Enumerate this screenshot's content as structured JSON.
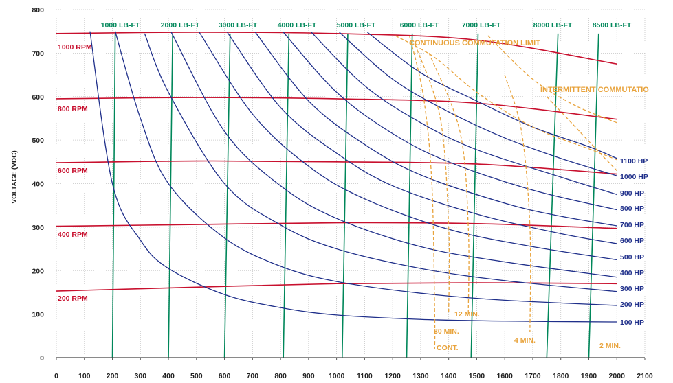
{
  "chart_data": {
    "type": "line",
    "title": "",
    "xlabel": "",
    "ylabel": "VOLTAGE (VDC)",
    "xlim": [
      0,
      2100
    ],
    "ylim": [
      0,
      800
    ],
    "grid": true,
    "x_ticks": [
      "0",
      "100",
      "200",
      "300",
      "400",
      "500",
      "600",
      "700",
      "800",
      "900",
      "1000",
      "1100",
      "1200",
      "1300",
      "1400",
      "1500",
      "1600",
      "1700",
      "1800",
      "1900",
      "2000",
      "2100"
    ],
    "y_ticks": [
      "0",
      "100",
      "200",
      "300",
      "400",
      "500",
      "600",
      "700",
      "800"
    ],
    "colors": {
      "rpm": "#c8102e",
      "torque": "#00875a",
      "hp": "#1f2f8a",
      "limit": "#e8a33c",
      "grid": "#c4c4c4"
    },
    "rpm_series": [
      {
        "name": "1000 RPM",
        "points": [
          [
            0,
            745
          ],
          [
            500,
            748
          ],
          [
            1000,
            745
          ],
          [
            1500,
            730
          ],
          [
            2000,
            675
          ]
        ]
      },
      {
        "name": "800 RPM",
        "points": [
          [
            0,
            595
          ],
          [
            500,
            598
          ],
          [
            1000,
            595
          ],
          [
            1500,
            585
          ],
          [
            2000,
            548
          ]
        ]
      },
      {
        "name": "600 RPM",
        "points": [
          [
            0,
            448
          ],
          [
            500,
            452
          ],
          [
            1000,
            450
          ],
          [
            1500,
            445
          ],
          [
            2000,
            422
          ]
        ]
      },
      {
        "name": "400 RPM",
        "points": [
          [
            0,
            302
          ],
          [
            500,
            306
          ],
          [
            1000,
            310
          ],
          [
            1500,
            308
          ],
          [
            2000,
            297
          ]
        ]
      },
      {
        "name": "200 RPM",
        "points": [
          [
            0,
            153
          ],
          [
            500,
            162
          ],
          [
            1000,
            170
          ],
          [
            1500,
            172
          ],
          [
            2000,
            170
          ]
        ]
      }
    ],
    "torque_series": [
      {
        "name": "1000 LB-FT",
        "points": [
          [
            200,
            0
          ],
          [
            210,
            745
          ]
        ]
      },
      {
        "name": "2000 LB-FT",
        "points": [
          [
            400,
            0
          ],
          [
            415,
            745
          ]
        ]
      },
      {
        "name": "3000 LB-FT",
        "points": [
          [
            600,
            0
          ],
          [
            620,
            745
          ]
        ]
      },
      {
        "name": "4000 LB-FT",
        "points": [
          [
            810,
            0
          ],
          [
            830,
            745
          ]
        ]
      },
      {
        "name": "5000 LB-FT",
        "points": [
          [
            1020,
            0
          ],
          [
            1040,
            745
          ]
        ]
      },
      {
        "name": "6000 LB-FT",
        "points": [
          [
            1250,
            0
          ],
          [
            1270,
            745
          ]
        ]
      },
      {
        "name": "7000 LB-FT",
        "points": [
          [
            1480,
            0
          ],
          [
            1505,
            745
          ]
        ]
      },
      {
        "name": "8000 LB-FT",
        "points": [
          [
            1750,
            0
          ],
          [
            1790,
            745
          ]
        ]
      },
      {
        "name": "8500 LB-FT",
        "points": [
          [
            1900,
            0
          ],
          [
            1935,
            745
          ]
        ]
      }
    ],
    "hp_series": [
      {
        "name": "100 HP",
        "points": [
          [
            120,
            750
          ],
          [
            200,
            400
          ],
          [
            300,
            270
          ],
          [
            400,
            205
          ],
          [
            600,
            145
          ],
          [
            800,
            115
          ],
          [
            1000,
            98
          ],
          [
            1300,
            88
          ],
          [
            1600,
            84
          ],
          [
            2000,
            82
          ]
        ]
      },
      {
        "name": "200 HP",
        "points": [
          [
            210,
            750
          ],
          [
            300,
            550
          ],
          [
            400,
            400
          ],
          [
            600,
            275
          ],
          [
            800,
            210
          ],
          [
            1000,
            175
          ],
          [
            1300,
            148
          ],
          [
            1600,
            132
          ],
          [
            2000,
            120
          ]
        ]
      },
      {
        "name": "300 HP",
        "points": [
          [
            315,
            745
          ],
          [
            400,
            610
          ],
          [
            600,
            400
          ],
          [
            800,
            305
          ],
          [
            1000,
            250
          ],
          [
            1300,
            205
          ],
          [
            1600,
            177
          ],
          [
            2000,
            152
          ]
        ]
      },
      {
        "name": "400 HP",
        "points": [
          [
            410,
            748
          ],
          [
            600,
            520
          ],
          [
            800,
            395
          ],
          [
            1000,
            320
          ],
          [
            1300,
            255
          ],
          [
            1600,
            220
          ],
          [
            2000,
            185
          ]
        ]
      },
      {
        "name": "500 HP",
        "points": [
          [
            510,
            748
          ],
          [
            700,
            560
          ],
          [
            900,
            440
          ],
          [
            1100,
            365
          ],
          [
            1400,
            295
          ],
          [
            1700,
            255
          ],
          [
            2000,
            225
          ]
        ]
      },
      {
        "name": "600 HP",
        "points": [
          [
            610,
            748
          ],
          [
            800,
            575
          ],
          [
            1000,
            470
          ],
          [
            1200,
            395
          ],
          [
            1500,
            330
          ],
          [
            1800,
            285
          ],
          [
            2000,
            262
          ]
        ]
      },
      {
        "name": "700 HP",
        "points": [
          [
            710,
            748
          ],
          [
            900,
            590
          ],
          [
            1100,
            490
          ],
          [
            1300,
            420
          ],
          [
            1600,
            355
          ],
          [
            1800,
            325
          ],
          [
            2000,
            303
          ]
        ]
      },
      {
        "name": "800 HP",
        "points": [
          [
            810,
            748
          ],
          [
            1000,
            610
          ],
          [
            1200,
            515
          ],
          [
            1400,
            450
          ],
          [
            1700,
            385
          ],
          [
            2000,
            340
          ]
        ]
      },
      {
        "name": "900 HP",
        "points": [
          [
            910,
            748
          ],
          [
            1100,
            625
          ],
          [
            1300,
            540
          ],
          [
            1500,
            478
          ],
          [
            1800,
            415
          ],
          [
            2000,
            375
          ]
        ]
      },
      {
        "name": "1000 HP",
        "points": [
          [
            1010,
            748
          ],
          [
            1200,
            640
          ],
          [
            1400,
            565
          ],
          [
            1600,
            505
          ],
          [
            1800,
            458
          ],
          [
            2000,
            418
          ]
        ]
      },
      {
        "name": "1100 HP",
        "points": [
          [
            1110,
            748
          ],
          [
            1300,
            655
          ],
          [
            1500,
            590
          ],
          [
            1700,
            530
          ],
          [
            1900,
            485
          ],
          [
            2000,
            458
          ]
        ]
      }
    ],
    "limit_curves": [
      {
        "name": "CONTINUOUS COMMUTATION LIMIT",
        "points": [
          [
            1210,
            740
          ],
          [
            1350,
            690
          ],
          [
            1500,
            610
          ],
          [
            1700,
            530
          ],
          [
            1900,
            480
          ],
          [
            2000,
            455
          ]
        ]
      },
      {
        "name": "INTERMITTENT COMMUTATION LIMIT",
        "points": [
          [
            1540,
            740
          ],
          [
            1700,
            640
          ],
          [
            1850,
            580
          ],
          [
            2000,
            540
          ]
        ]
      },
      {
        "name": "CONT.",
        "points": [
          [
            1260,
            740
          ],
          [
            1310,
            600
          ],
          [
            1340,
            400
          ],
          [
            1350,
            100
          ],
          [
            1350,
            20
          ]
        ]
      },
      {
        "name": "30 MIN.",
        "points": [
          [
            1280,
            720
          ],
          [
            1370,
            550
          ],
          [
            1400,
            300
          ],
          [
            1400,
            100
          ]
        ]
      },
      {
        "name": "12 MIN.",
        "points": [
          [
            1330,
            700
          ],
          [
            1440,
            520
          ],
          [
            1470,
            300
          ],
          [
            1470,
            100
          ]
        ]
      },
      {
        "name": "4 MIN.",
        "points": [
          [
            1600,
            650
          ],
          [
            1660,
            520
          ],
          [
            1690,
            300
          ],
          [
            1690,
            60
          ]
        ]
      },
      {
        "name": "2 MIN.",
        "points": [
          [
            1750,
            600
          ],
          [
            1940,
            470
          ],
          [
            2000,
            430
          ]
        ]
      }
    ],
    "annotations": {
      "rpm_labels": [
        "1000 RPM",
        "800 RPM",
        "600 RPM",
        "400 RPM",
        "200 RPM"
      ],
      "torque_labels": [
        "1000 LB-FT",
        "2000 LB-FT",
        "3000 LB-FT",
        "4000 LB-FT",
        "5000 LB-FT",
        "6000 LB-FT",
        "7000 LB-FT",
        "8000 LB-FT",
        "8500 LB-FT"
      ],
      "hp_labels": [
        "1100 HP",
        "1000 HP",
        "900 HP",
        "800 HP",
        "700 HP",
        "600 HP",
        "500 HP",
        "400 HP",
        "300 HP",
        "200 HP",
        "100 HP"
      ],
      "continuous_limit": "CONTINUOUS COMMUTATION LIMIT",
      "intermittent_limit": "INTERMITTENT COMMUTATIO",
      "time_labels": [
        "12 MIN.",
        "30 MIN.",
        "CONT.",
        "4 MIN.",
        "2 MIN."
      ]
    }
  }
}
